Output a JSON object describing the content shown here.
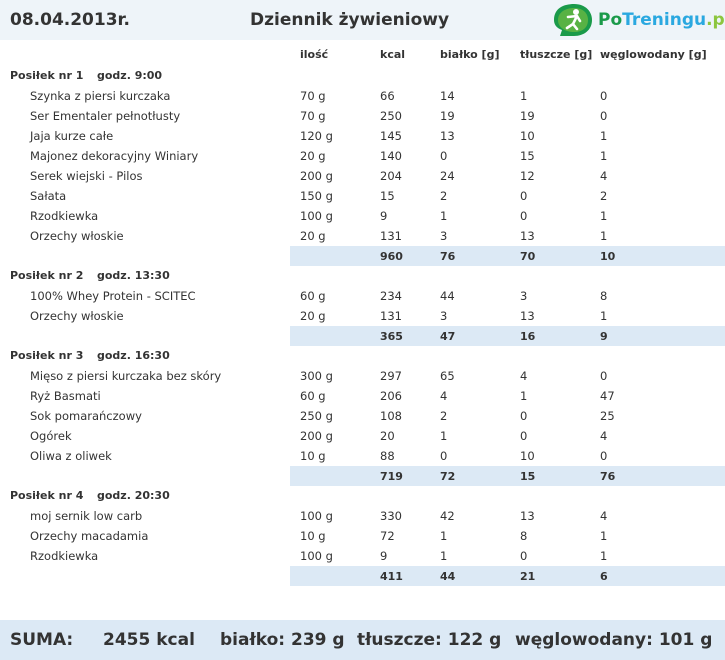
{
  "header": {
    "date": "08.04.2013r.",
    "title": "Dziennik żywieniowy",
    "logo": {
      "brand_a": "Po",
      "brand_b": "Treningu",
      "brand_c": ".pl",
      "icon": "runner-logo-icon"
    }
  },
  "columns": [
    "ilość",
    "kcal",
    "białko [g]",
    "tłuszcze [g]",
    "węglowodany [g]"
  ],
  "meals": [
    {
      "label": "Posiłek nr 1",
      "time": "godz. 9:00",
      "items": [
        [
          "Szynka z piersi kurczaka",
          "70 g",
          "66",
          "14",
          "1",
          "0"
        ],
        [
          "Ser Ementaler pełnotłusty",
          "70 g",
          "250",
          "19",
          "19",
          "0"
        ],
        [
          "Jaja kurze całe",
          "120 g",
          "145",
          "13",
          "10",
          "1"
        ],
        [
          "Majonez dekoracyjny Winiary",
          "20 g",
          "140",
          "0",
          "15",
          "1"
        ],
        [
          "Serek wiejski - Pilos",
          "200 g",
          "204",
          "24",
          "12",
          "4"
        ],
        [
          "Sałata",
          "150 g",
          "15",
          "2",
          "0",
          "2"
        ],
        [
          "Rzodkiewka",
          "100 g",
          "9",
          "1",
          "0",
          "1"
        ],
        [
          "Orzechy włoskie",
          "20 g",
          "131",
          "3",
          "13",
          "1"
        ]
      ],
      "totals": [
        "960",
        "76",
        "70",
        "10"
      ]
    },
    {
      "label": "Posiłek nr 2",
      "time": "godz. 13:30",
      "items": [
        [
          "100% Whey Protein - SCITEC",
          "60 g",
          "234",
          "44",
          "3",
          "8"
        ],
        [
          "Orzechy włoskie",
          "20 g",
          "131",
          "3",
          "13",
          "1"
        ]
      ],
      "totals": [
        "365",
        "47",
        "16",
        "9"
      ]
    },
    {
      "label": "Posiłek nr 3",
      "time": "godz. 16:30",
      "items": [
        [
          "Mięso z piersi kurczaka bez skóry",
          "300 g",
          "297",
          "65",
          "4",
          "0"
        ],
        [
          "Ryż Basmati",
          "60 g",
          "206",
          "4",
          "1",
          "47"
        ],
        [
          "Sok pomarańczowy",
          "250 g",
          "108",
          "2",
          "0",
          "25"
        ],
        [
          "Ogórek",
          "200 g",
          "20",
          "1",
          "0",
          "4"
        ],
        [
          "Oliwa z oliwek",
          "10 g",
          "88",
          "0",
          "10",
          "0"
        ]
      ],
      "totals": [
        "719",
        "72",
        "15",
        "76"
      ]
    },
    {
      "label": "Posiłek nr 4",
      "time": "godz. 20:30",
      "items": [
        [
          "moj sernik low carb",
          "100 g",
          "330",
          "42",
          "13",
          "4"
        ],
        [
          "Orzechy macadamia",
          "10 g",
          "72",
          "1",
          "8",
          "1"
        ],
        [
          "Rzodkiewka",
          "100 g",
          "9",
          "1",
          "0",
          "1"
        ]
      ],
      "totals": [
        "411",
        "44",
        "21",
        "6"
      ]
    }
  ],
  "summary": {
    "label": "SUMA:",
    "kcal": "2455 kcal",
    "protein": "białko: 239 g",
    "fat": "tłuszcze: 122 g",
    "carbs": "węglowodany: 101 g"
  },
  "colors": {
    "header_bg": "#eef4f9",
    "totals_bg": "#dce9f5",
    "brand_green": "#1a9a4a",
    "brand_blue": "#2aa8e0",
    "brand_lime": "#8cc63f"
  }
}
